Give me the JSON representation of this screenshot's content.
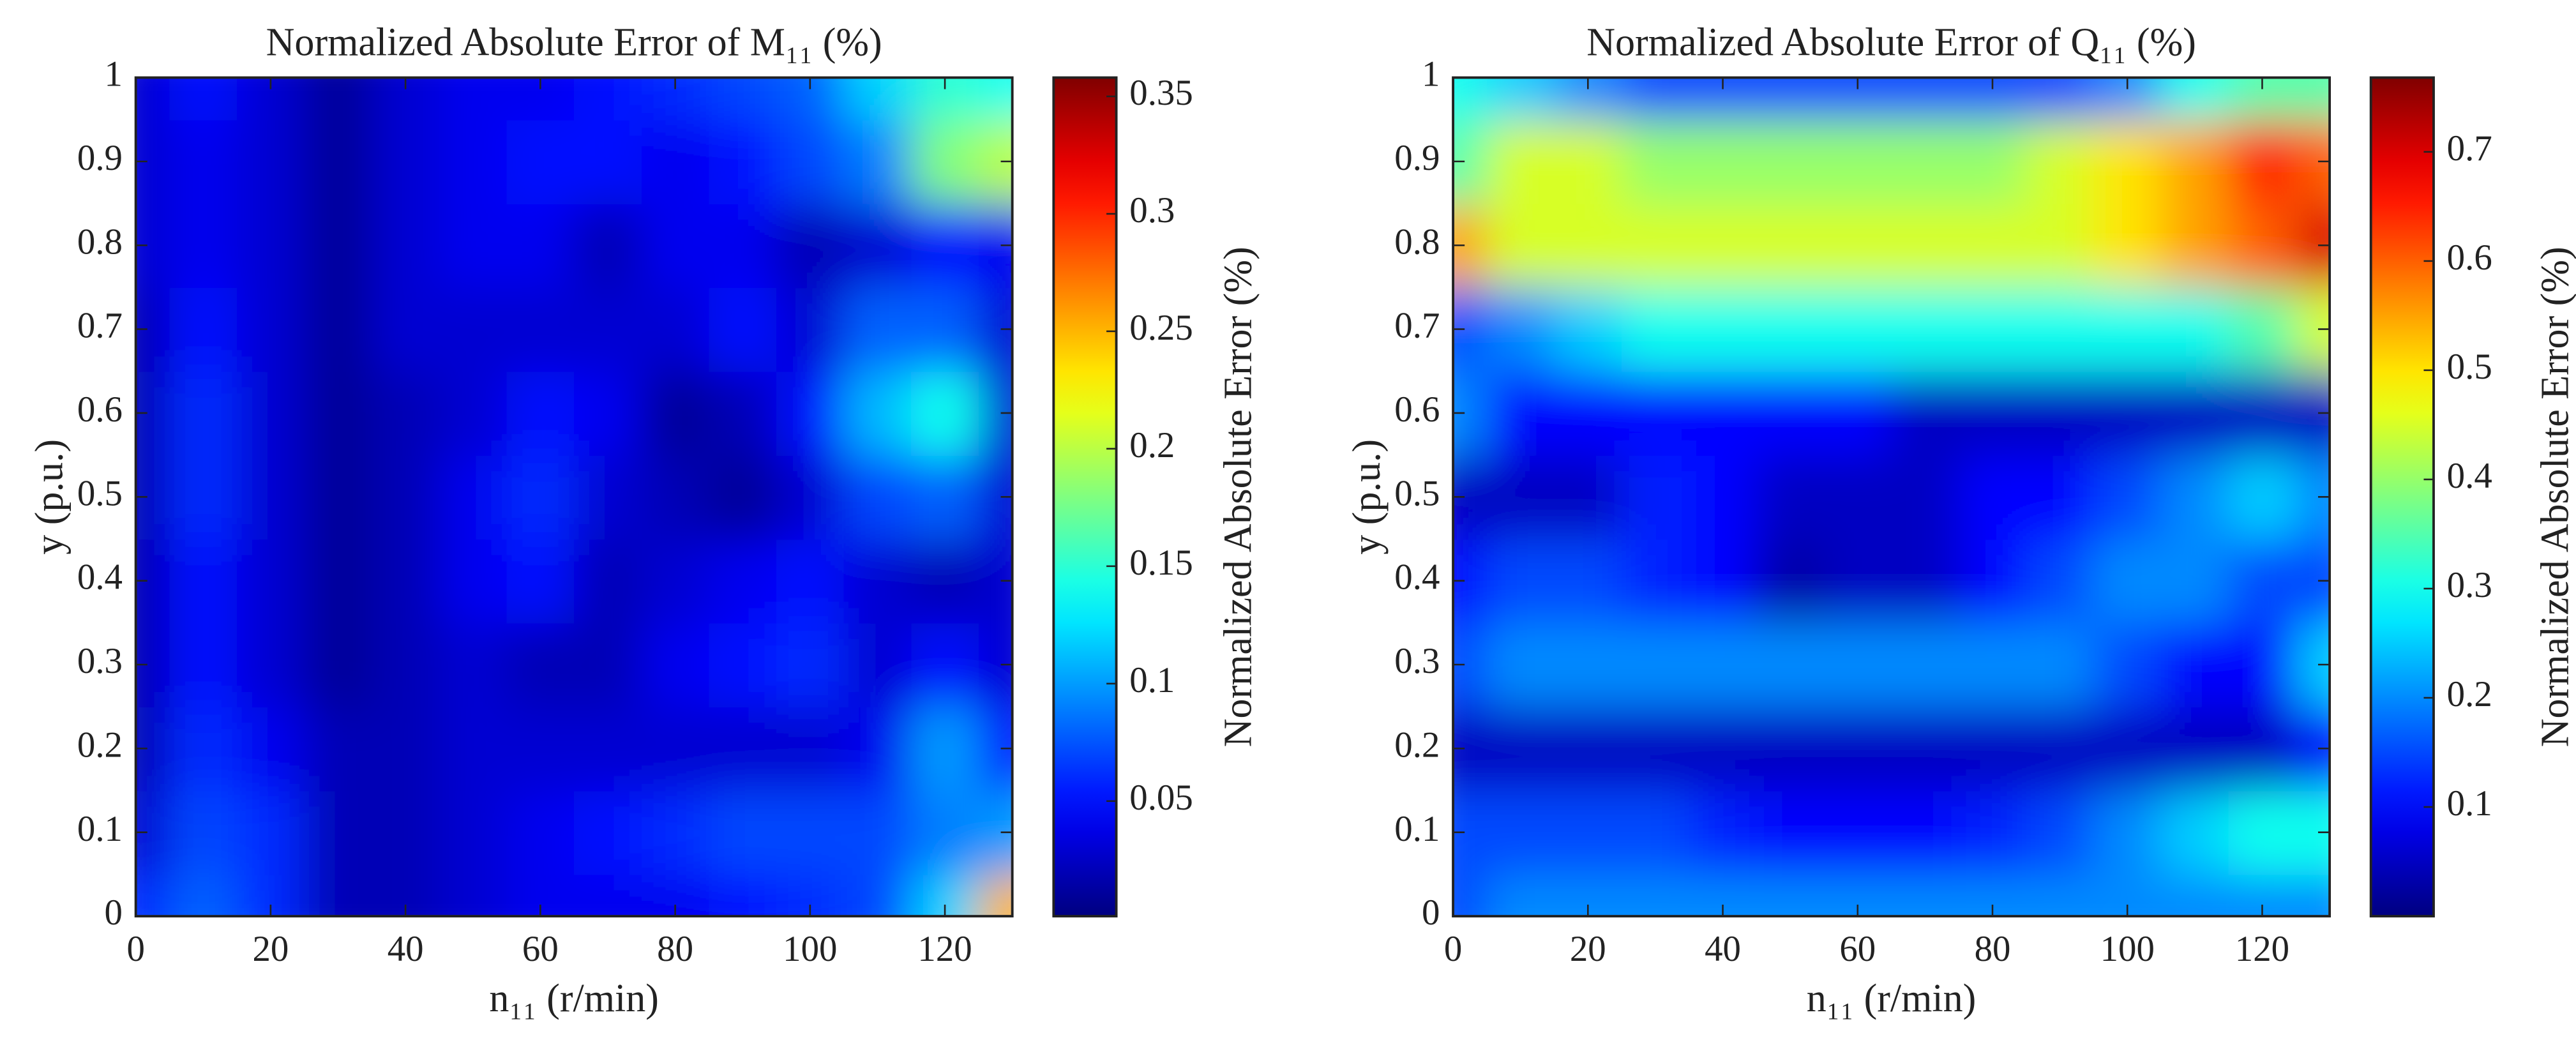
{
  "chart_data": [
    {
      "type": "contour",
      "title": "Normalized Absolute Error of M₁₁ (%)",
      "x_label": "n₁₁ (r/min)",
      "y_label": "y (p.u.)",
      "colormap": "jet",
      "colorbar_label": "Normalized Absolute Error (%)",
      "x": [
        0,
        10,
        20,
        30,
        40,
        50,
        60,
        70,
        80,
        90,
        100,
        110,
        120,
        130
      ],
      "y": [
        0,
        0.1,
        0.2,
        0.3,
        0.4,
        0.5,
        0.6,
        0.7,
        0.8,
        0.9,
        1
      ],
      "z": [
        [
          0.06,
          0.08,
          0.06,
          0.02,
          0.02,
          0.03,
          0.04,
          0.04,
          0.04,
          0.05,
          0.06,
          0.07,
          0.12,
          0.25
        ],
        [
          0.03,
          0.07,
          0.06,
          0.02,
          0.02,
          0.03,
          0.04,
          0.05,
          0.06,
          0.07,
          0.07,
          0.07,
          0.09,
          0.1
        ],
        [
          0.02,
          0.06,
          0.04,
          0.02,
          0.02,
          0.03,
          0.03,
          0.03,
          0.03,
          0.03,
          0.03,
          0.04,
          0.1,
          0.05
        ],
        [
          0.02,
          0.05,
          0.03,
          0.01,
          0.02,
          0.03,
          0.02,
          0.02,
          0.04,
          0.05,
          0.06,
          0.03,
          0.05,
          0.03
        ],
        [
          0.02,
          0.05,
          0.03,
          0.01,
          0.02,
          0.04,
          0.05,
          0.02,
          0.03,
          0.04,
          0.05,
          0.03,
          0.02,
          0.03
        ],
        [
          0.02,
          0.06,
          0.03,
          0.01,
          0.02,
          0.04,
          0.06,
          0.03,
          0.02,
          0.01,
          0.03,
          0.07,
          0.08,
          0.03
        ],
        [
          0.02,
          0.06,
          0.03,
          0.01,
          0.02,
          0.03,
          0.05,
          0.04,
          0.01,
          0.02,
          0.05,
          0.11,
          0.14,
          0.03
        ],
        [
          0.02,
          0.05,
          0.03,
          0.01,
          0.03,
          0.03,
          0.03,
          0.03,
          0.03,
          0.05,
          0.03,
          0.08,
          0.08,
          0.03
        ],
        [
          0.03,
          0.04,
          0.03,
          0.01,
          0.03,
          0.04,
          0.04,
          0.02,
          0.04,
          0.04,
          0.02,
          0.03,
          0.05,
          0.04
        ],
        [
          0.03,
          0.04,
          0.03,
          0.01,
          0.03,
          0.04,
          0.05,
          0.05,
          0.04,
          0.05,
          0.07,
          0.09,
          0.18,
          0.2
        ],
        [
          0.03,
          0.05,
          0.03,
          0.01,
          0.03,
          0.04,
          0.04,
          0.05,
          0.06,
          0.07,
          0.08,
          0.12,
          0.15,
          0.14
        ]
      ],
      "xlim": [
        0,
        130
      ],
      "xticks": [
        0,
        20,
        40,
        60,
        80,
        100,
        120
      ],
      "ylim": [
        0,
        1
      ],
      "yticks": [
        0,
        0.1,
        0.2,
        0.3,
        0.4,
        0.5,
        0.6,
        0.7,
        0.8,
        0.9,
        1
      ],
      "clim": [
        0.001,
        0.358
      ],
      "colorbar_ticks": [
        0.05,
        0.1,
        0.15,
        0.2,
        0.25,
        0.3,
        0.35
      ]
    },
    {
      "type": "contour",
      "title": "Normalized Absolute Error of Q₁₁ (%)",
      "x_label": "n₁₁ (r/min)",
      "y_label": "y (p.u.)",
      "colormap": "jet",
      "colorbar_label": "Normalized Absolute Error (%)",
      "x": [
        0,
        10,
        20,
        30,
        40,
        50,
        60,
        70,
        80,
        90,
        100,
        110,
        120,
        130
      ],
      "y": [
        0,
        0.1,
        0.2,
        0.3,
        0.4,
        0.5,
        0.6,
        0.7,
        0.8,
        0.9,
        1
      ],
      "z": [
        [
          0.15,
          0.2,
          0.2,
          0.2,
          0.2,
          0.2,
          0.2,
          0.2,
          0.2,
          0.2,
          0.2,
          0.2,
          0.2,
          0.2
        ],
        [
          0.15,
          0.15,
          0.15,
          0.15,
          0.12,
          0.1,
          0.1,
          0.1,
          0.12,
          0.15,
          0.2,
          0.25,
          0.3,
          0.3
        ],
        [
          0.05,
          0.05,
          0.05,
          0.05,
          0.05,
          0.05,
          0.05,
          0.05,
          0.05,
          0.05,
          0.05,
          0.05,
          0.05,
          0.1
        ],
        [
          0.15,
          0.2,
          0.2,
          0.2,
          0.2,
          0.2,
          0.2,
          0.2,
          0.2,
          0.2,
          0.15,
          0.1,
          0.1,
          0.25
        ],
        [
          0.1,
          0.15,
          0.15,
          0.12,
          0.1,
          0.03,
          0.05,
          0.05,
          0.1,
          0.15,
          0.2,
          0.2,
          0.15,
          0.15
        ],
        [
          0.05,
          0.05,
          0.05,
          0.12,
          0.1,
          0.05,
          0.05,
          0.05,
          0.1,
          0.1,
          0.15,
          0.2,
          0.25,
          0.2
        ],
        [
          0.2,
          0.1,
          0.1,
          0.1,
          0.1,
          0.1,
          0.1,
          0.05,
          0.05,
          0.05,
          0.05,
          0.05,
          0.05,
          0.05
        ],
        [
          0.15,
          0.2,
          0.25,
          0.3,
          0.3,
          0.3,
          0.3,
          0.3,
          0.3,
          0.3,
          0.3,
          0.3,
          0.35,
          0.45
        ],
        [
          0.55,
          0.45,
          0.45,
          0.45,
          0.45,
          0.45,
          0.45,
          0.45,
          0.45,
          0.45,
          0.5,
          0.55,
          0.6,
          0.7
        ],
        [
          0.35,
          0.45,
          0.45,
          0.4,
          0.4,
          0.4,
          0.4,
          0.4,
          0.4,
          0.45,
          0.5,
          0.55,
          0.65,
          0.6
        ],
        [
          0.3,
          0.25,
          0.2,
          0.15,
          0.15,
          0.15,
          0.15,
          0.15,
          0.15,
          0.15,
          0.2,
          0.3,
          0.35,
          0.35
        ]
      ],
      "xlim": [
        0,
        130
      ],
      "xticks": [
        0,
        20,
        40,
        60,
        80,
        100,
        120
      ],
      "ylim": [
        0,
        1
      ],
      "yticks": [
        0,
        0.1,
        0.2,
        0.3,
        0.4,
        0.5,
        0.6,
        0.7,
        0.8,
        0.9,
        1
      ],
      "clim": [
        0,
        0.768
      ],
      "colorbar_ticks": [
        0.1,
        0.2,
        0.3,
        0.4,
        0.5,
        0.6,
        0.7
      ]
    }
  ]
}
